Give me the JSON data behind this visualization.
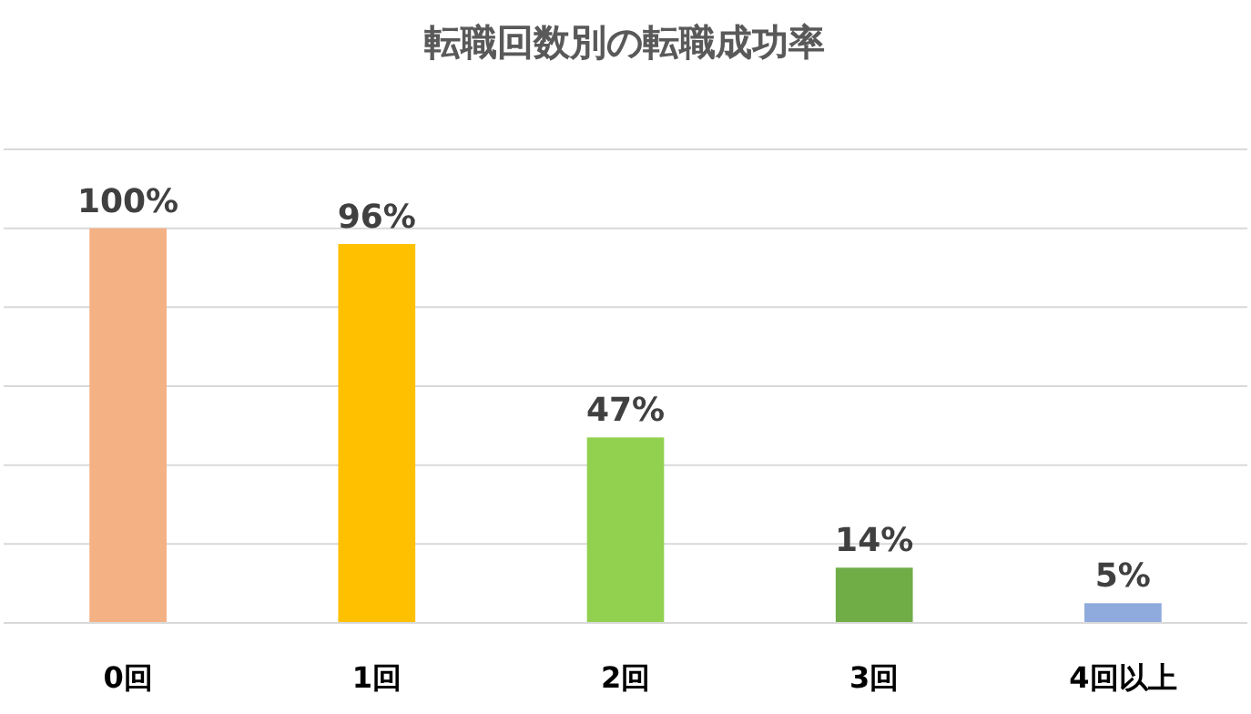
{
  "chart_data": {
    "type": "bar",
    "title": "転職回数別の転職成功率",
    "categories": [
      "0回",
      "1回",
      "2回",
      "3回",
      "4回以上"
    ],
    "values": [
      100,
      96,
      47,
      14,
      5
    ],
    "colors": [
      "#f4b183",
      "#ffc000",
      "#92d050",
      "#70ad47",
      "#8faadc"
    ],
    "value_labels": [
      "100%",
      "96%",
      "47%",
      "14%",
      "5%"
    ],
    "ylim": [
      0,
      120
    ],
    "yticks": [
      {
        "value": 0,
        "label": null
      },
      {
        "value": 20,
        "label": null
      },
      {
        "value": 40,
        "label": null
      },
      {
        "value": 60,
        "label": null
      },
      {
        "value": 80,
        "label": null
      },
      {
        "value": 100,
        "label": null
      },
      {
        "value": 120,
        "label": null
      }
    ],
    "grid": true,
    "tick_labels": "x"
  }
}
